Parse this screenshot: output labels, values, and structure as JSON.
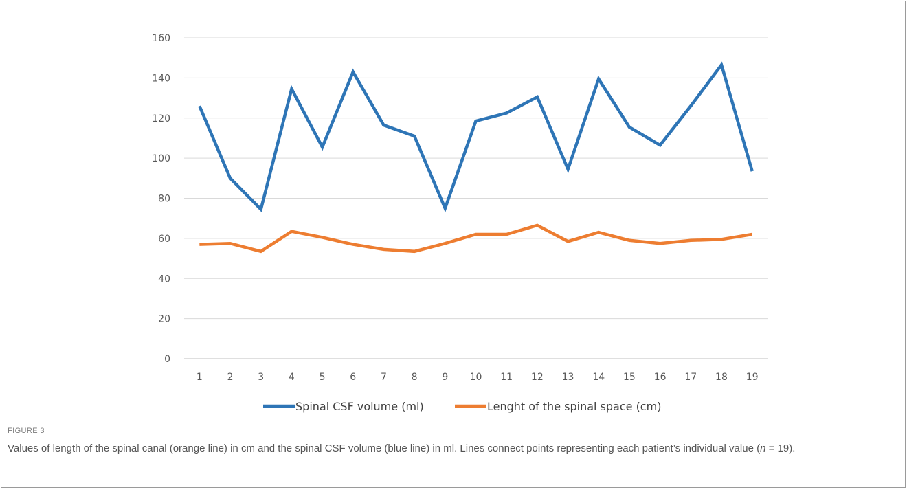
{
  "figure": {
    "label": "FIGURE 3",
    "caption_main": "Values of length of the spinal canal (orange line) in cm and the spinal CSF volume (blue line) in ml. Lines connect points representing each patient’s individual value (",
    "caption_n": "n",
    "caption_tail": " = 19)."
  },
  "chart_data": {
    "type": "line",
    "title": "",
    "xlabel": "",
    "ylabel": "",
    "x": [
      1,
      2,
      3,
      4,
      5,
      6,
      7,
      8,
      9,
      10,
      11,
      12,
      13,
      14,
      15,
      16,
      17,
      18,
      19
    ],
    "ylim": [
      0,
      160
    ],
    "yticks": [
      0,
      20,
      40,
      60,
      80,
      100,
      120,
      140,
      160
    ],
    "grid": "horizontal",
    "legend": "bottom",
    "series": [
      {
        "name": "Spinal CSF volume (ml)",
        "color": "#2E75B6",
        "values": [
          126,
          90,
          74.5,
          134.5,
          105.5,
          143,
          116.5,
          111,
          75,
          118.5,
          122.5,
          130.5,
          94.5,
          139.5,
          115.5,
          106.5,
          126,
          146.5,
          93.5
        ]
      },
      {
        "name": "Lenght of the spinal space (cm)",
        "color": "#ED7D31",
        "values": [
          57,
          57.5,
          53.5,
          63.5,
          60.5,
          57,
          54.5,
          53.5,
          57.5,
          62,
          62,
          66.5,
          58.5,
          63,
          59,
          57.5,
          59,
          59.5,
          62
        ]
      }
    ]
  }
}
